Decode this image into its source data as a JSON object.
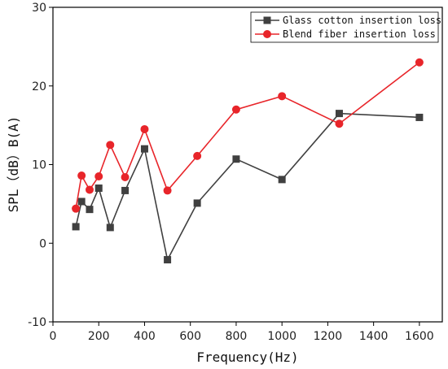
{
  "chart_data": {
    "type": "line",
    "xlabel": "Frequency(Hz)",
    "ylabel": "SPL（dB）B(A)",
    "xlim": [
      0,
      1700
    ],
    "ylim": [
      -10,
      30
    ],
    "xticks": [
      0,
      200,
      400,
      600,
      800,
      1000,
      1200,
      1400,
      1600
    ],
    "yticks": [
      -10,
      0,
      10,
      20,
      30
    ],
    "legend_position": "top-right",
    "series": [
      {
        "name": "Glass cotton insertion loss",
        "color": "#404040",
        "marker": "square",
        "x": [
          100,
          125,
          160,
          200,
          250,
          315,
          400,
          500,
          630,
          800,
          1000,
          1250,
          1600
        ],
        "y": [
          2.1,
          5.3,
          4.3,
          7.0,
          2.0,
          6.7,
          12.0,
          -2.1,
          5.1,
          10.7,
          8.1,
          16.5,
          16.0
        ]
      },
      {
        "name": "Blend fiber insertion loss",
        "color": "#e8252a",
        "marker": "circle",
        "x": [
          100,
          125,
          160,
          200,
          250,
          315,
          400,
          500,
          630,
          800,
          1000,
          1250,
          1600
        ],
        "y": [
          4.4,
          8.6,
          6.8,
          8.5,
          12.5,
          8.4,
          14.5,
          6.7,
          11.1,
          17.0,
          18.7,
          15.2,
          23.0
        ]
      }
    ]
  }
}
